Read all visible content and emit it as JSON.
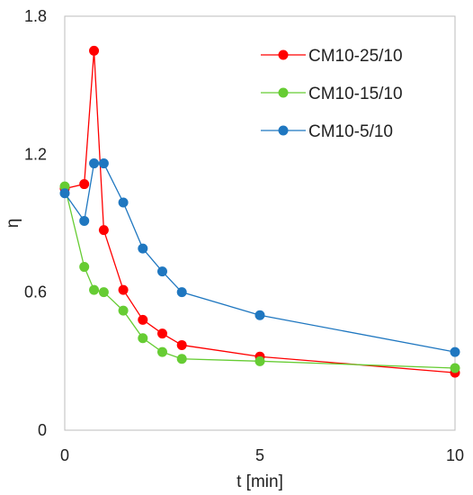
{
  "chart_data": {
    "type": "line",
    "title": "",
    "xlabel": "t [min]",
    "ylabel": "η",
    "xlim": [
      0,
      10
    ],
    "ylim": [
      0,
      1.8
    ],
    "xticks": [
      0,
      5,
      10
    ],
    "yticks": [
      0,
      0.6,
      1.2,
      1.8
    ],
    "xtick_labels": [
      "0",
      "5",
      "10"
    ],
    "ytick_labels": [
      "0",
      "0.6",
      "1.2",
      "1.8"
    ],
    "grid": false,
    "legend_position": "top-right",
    "series": [
      {
        "name": "CM10-25/10",
        "color": "#ff0000",
        "x": [
          0,
          0.5,
          0.75,
          1,
          1.5,
          2,
          2.5,
          3,
          5,
          10
        ],
        "y": [
          1.05,
          1.07,
          1.65,
          0.87,
          0.61,
          0.48,
          0.42,
          0.37,
          0.32,
          0.25
        ]
      },
      {
        "name": "CM10-15/10",
        "color": "#66cc33",
        "x": [
          0,
          0.5,
          0.75,
          1,
          1.5,
          2,
          2.5,
          3,
          5,
          10
        ],
        "y": [
          1.06,
          0.71,
          0.61,
          0.6,
          0.52,
          0.4,
          0.34,
          0.31,
          0.3,
          0.27
        ]
      },
      {
        "name": "CM10-5/10",
        "color": "#1f77c0",
        "x": [
          0,
          0.5,
          0.75,
          1,
          1.5,
          2,
          2.5,
          3,
          5,
          10
        ],
        "y": [
          1.03,
          0.91,
          1.16,
          1.16,
          0.99,
          0.79,
          0.69,
          0.6,
          0.5,
          0.34
        ]
      }
    ]
  }
}
